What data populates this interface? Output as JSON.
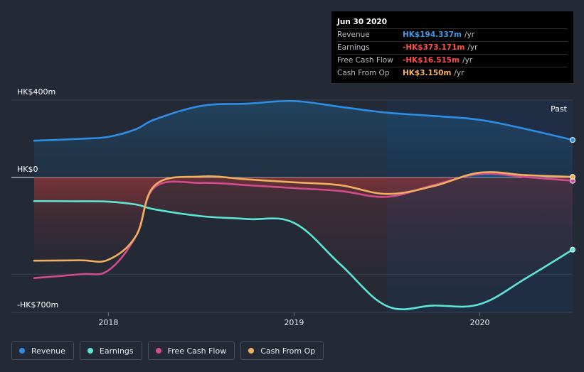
{
  "tooltip": {
    "date": "Jun 30 2020",
    "rows": [
      {
        "label": "Revenue",
        "value": "HK$194.337m",
        "unit": "/yr",
        "color": "#3d9be9"
      },
      {
        "label": "Earnings",
        "value": "-HK$373.171m",
        "unit": "/yr",
        "color": "#ff4d4d"
      },
      {
        "label": "Free Cash Flow",
        "value": "-HK$16.515m",
        "unit": "/yr",
        "color": "#ff4d4d"
      },
      {
        "label": "Cash From Op",
        "value": "HK$3.150m",
        "unit": "/yr",
        "color": "#f5b26b"
      }
    ]
  },
  "legend": [
    {
      "label": "Revenue",
      "color": "#2e8de5"
    },
    {
      "label": "Earnings",
      "color": "#5ee6d4"
    },
    {
      "label": "Free Cash Flow",
      "color": "#d44b8e"
    },
    {
      "label": "Cash From Op",
      "color": "#f0b060"
    }
  ],
  "chart_data": {
    "type": "area",
    "currency_prefix": "HK$",
    "unit": "m",
    "y_axis_labels": [
      "HK$400m",
      "HK$0",
      "-HK$700m"
    ],
    "y_gridlines": [
      400,
      0,
      -500
    ],
    "ylim": [
      -700,
      400
    ],
    "xlim": [
      2017.6,
      2020.5
    ],
    "x_ticks": [
      {
        "value": 2018,
        "label": "2018"
      },
      {
        "value": 2019,
        "label": "2019"
      },
      {
        "value": 2020,
        "label": "2020"
      }
    ],
    "past_label": "Past",
    "past_start": 2019.5,
    "series": [
      {
        "name": "Revenue",
        "color": "#2e8de5",
        "x": [
          2017.6,
          2017.85,
          2018.0,
          2018.15,
          2018.25,
          2018.5,
          2018.75,
          2019.0,
          2019.25,
          2019.5,
          2019.75,
          2020.0,
          2020.25,
          2020.5
        ],
        "values": [
          190,
          200,
          210,
          250,
          300,
          370,
          382,
          395,
          365,
          335,
          318,
          298,
          250,
          194
        ]
      },
      {
        "name": "Earnings",
        "color": "#5ee6d4",
        "x": [
          2017.6,
          2017.85,
          2018.0,
          2018.15,
          2018.25,
          2018.5,
          2018.75,
          2019.0,
          2019.25,
          2019.5,
          2019.75,
          2020.0,
          2020.25,
          2020.5
        ],
        "values": [
          -122,
          -123,
          -125,
          -140,
          -165,
          -200,
          -215,
          -235,
          -450,
          -665,
          -662,
          -655,
          -520,
          -373
        ]
      },
      {
        "name": "Free Cash Flow",
        "color": "#d44b8e",
        "x": [
          2017.6,
          2017.85,
          2018.0,
          2018.15,
          2018.25,
          2018.5,
          2018.75,
          2019.0,
          2019.25,
          2019.5,
          2019.75,
          2020.0,
          2020.25,
          2020.5
        ],
        "values": [
          -520,
          -500,
          -480,
          -300,
          -50,
          -28,
          -40,
          -55,
          -70,
          -100,
          -40,
          18,
          2,
          -17
        ]
      },
      {
        "name": "Cash From Op",
        "color": "#f0b060",
        "x": [
          2017.6,
          2017.85,
          2018.0,
          2018.15,
          2018.25,
          2018.5,
          2018.75,
          2019.0,
          2019.25,
          2019.5,
          2019.75,
          2020.0,
          2020.25,
          2020.5
        ],
        "values": [
          -430,
          -428,
          -425,
          -300,
          -40,
          5,
          -10,
          -25,
          -40,
          -85,
          -45,
          25,
          12,
          3
        ]
      }
    ]
  }
}
